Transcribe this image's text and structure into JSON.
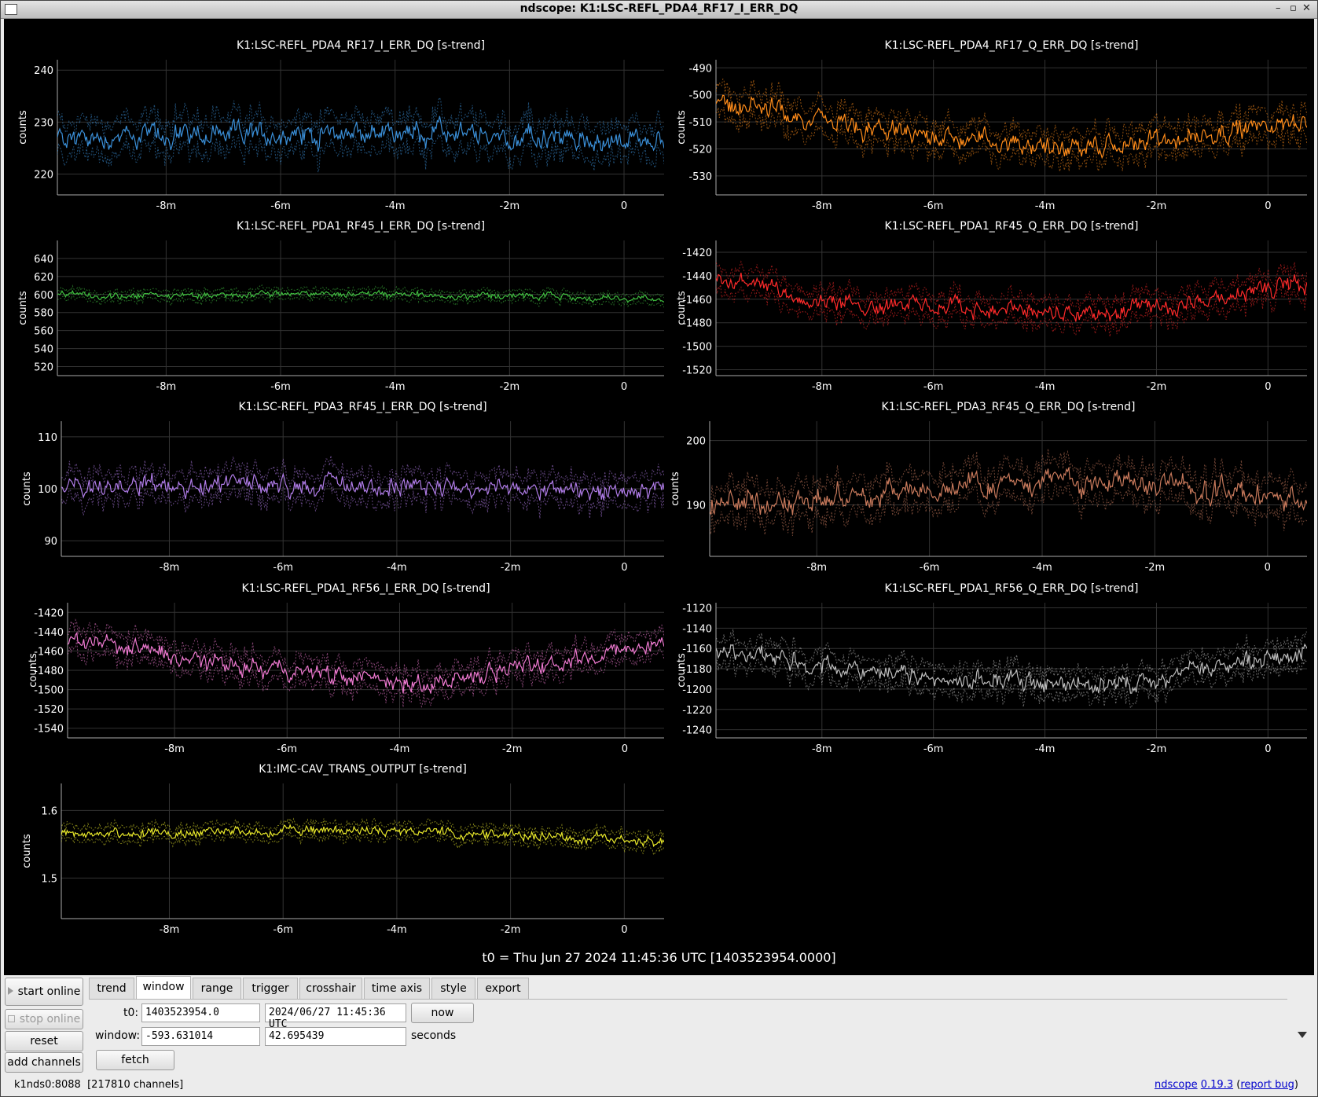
{
  "window": {
    "title": "ndscope: K1:LSC-REFL_PDA4_RF17_I_ERR_DQ"
  },
  "axis_unit": "counts",
  "t0_text": "t0 = Thu Jun 27 2024 11:45:36 UTC [1403523954.0000]",
  "chart_data": [
    {
      "type": "line",
      "title": "K1:LSC-REFL_PDA4_RF17_I_ERR_DQ [s-trend]",
      "ylabel": "counts",
      "xlim": [
        -9.9,
        0.7
      ],
      "ylim": [
        216,
        242
      ],
      "yticks": [
        220,
        230,
        240
      ],
      "xticks": [
        "-8m",
        "-6m",
        "-4m",
        "-2m",
        "0"
      ],
      "color": "#3a8fd8",
      "mean": 227,
      "drift": [
        [
          0,
          0
        ],
        [
          0.5,
          1
        ],
        [
          1,
          -1
        ]
      ],
      "spread": 3
    },
    {
      "type": "line",
      "title": "K1:LSC-REFL_PDA4_RF17_Q_ERR_DQ [s-trend]",
      "ylabel": "counts",
      "xlim": [
        -9.9,
        0.7
      ],
      "ylim": [
        -537,
        -487
      ],
      "yticks": [
        -490,
        -500,
        -510,
        -520,
        -530
      ],
      "xticks": [
        "-8m",
        "-6m",
        "-4m",
        "-2m",
        "0"
      ],
      "color": "#ff8c1a",
      "mean": -511,
      "drift": [
        [
          0,
          9
        ],
        [
          0.25,
          -2
        ],
        [
          0.65,
          -9
        ],
        [
          1,
          2
        ]
      ],
      "spread": 5
    },
    {
      "type": "line",
      "title": "K1:LSC-REFL_PDA1_RF45_I_ERR_DQ [s-trend]",
      "ylabel": "counts",
      "xlim": [
        -9.9,
        0.7
      ],
      "ylim": [
        510,
        660
      ],
      "yticks": [
        640,
        620,
        600,
        580,
        560,
        540,
        520
      ],
      "xticks": [
        "-8m",
        "-6m",
        "-4m",
        "-2m",
        "0"
      ],
      "color": "#3fbf3f",
      "mean": 598,
      "drift": [
        [
          0,
          0
        ],
        [
          0.5,
          3
        ],
        [
          1,
          -3
        ]
      ],
      "spread": 5
    },
    {
      "type": "line",
      "title": "K1:LSC-REFL_PDA1_RF45_Q_ERR_DQ [s-trend]",
      "ylabel": "counts",
      "xlim": [
        -9.9,
        0.7
      ],
      "ylim": [
        -1525,
        -1410
      ],
      "yticks": [
        -1420,
        -1440,
        -1460,
        -1480,
        -1500,
        -1520
      ],
      "xticks": [
        "-8m",
        "-6m",
        "-4m",
        "-2m",
        "0"
      ],
      "color": "#ff2a2a",
      "mean": -1462,
      "drift": [
        [
          0,
          20
        ],
        [
          0.2,
          0
        ],
        [
          0.65,
          -12
        ],
        [
          1,
          15
        ]
      ],
      "spread": 10
    },
    {
      "type": "line",
      "title": "K1:LSC-REFL_PDA3_RF45_I_ERR_DQ [s-trend]",
      "ylabel": "counts",
      "xlim": [
        -9.9,
        0.7
      ],
      "ylim": [
        87,
        113
      ],
      "yticks": [
        110,
        100,
        90
      ],
      "xticks": [
        "-8m",
        "-6m",
        "-4m",
        "-2m",
        "0"
      ],
      "color": "#b07ce8",
      "mean": 101,
      "drift": [
        [
          0,
          0
        ],
        [
          1,
          -1
        ]
      ],
      "spread": 2.5
    },
    {
      "type": "line",
      "title": "K1:LSC-REFL_PDA3_RF45_Q_ERR_DQ [s-trend]",
      "ylabel": "counts",
      "xlim": [
        -9.9,
        0.7
      ],
      "ylim": [
        182,
        203
      ],
      "yticks": [
        200,
        190
      ],
      "xticks": [
        "-8m",
        "-6m",
        "-4m",
        "-2m",
        "0"
      ],
      "color": "#c97a5c",
      "mean": 193,
      "drift": [
        [
          0,
          -3
        ],
        [
          0.6,
          1
        ],
        [
          1,
          -2
        ]
      ],
      "spread": 2.5
    },
    {
      "type": "line",
      "title": "K1:LSC-REFL_PDA1_RF56_I_ERR_DQ [s-trend]",
      "ylabel": "counts",
      "xlim": [
        -9.9,
        0.7
      ],
      "ylim": [
        -1550,
        -1410
      ],
      "yticks": [
        -1420,
        -1440,
        -1460,
        -1480,
        -1500,
        -1520,
        -1540
      ],
      "xticks": [
        "-8m",
        "-6m",
        "-4m",
        "-2m",
        "0"
      ],
      "color": "#f07ad2",
      "mean": -1473,
      "drift": [
        [
          0,
          25
        ],
        [
          0.25,
          0
        ],
        [
          0.6,
          -20
        ],
        [
          1,
          20
        ]
      ],
      "spread": 12
    },
    {
      "type": "line",
      "title": "K1:LSC-REFL_PDA1_RF56_Q_ERR_DQ [s-trend]",
      "ylabel": "counts",
      "xlim": [
        -9.9,
        0.7
      ],
      "ylim": [
        -1248,
        -1115
      ],
      "yticks": [
        -1120,
        -1140,
        -1160,
        -1180,
        -1200,
        -1220,
        -1240
      ],
      "xticks": [
        "-8m",
        "-6m",
        "-4m",
        "-2m",
        "0"
      ],
      "color": "#bdbdbd",
      "mean": -1183,
      "drift": [
        [
          0,
          22
        ],
        [
          0.25,
          0
        ],
        [
          0.65,
          -15
        ],
        [
          1,
          20
        ]
      ],
      "spread": 12
    },
    {
      "type": "line",
      "title": "K1:IMC-CAV_TRANS_OUTPUT [s-trend]",
      "ylabel": "counts",
      "xlim": [
        -9.9,
        0.7
      ],
      "ylim": [
        1.44,
        1.64
      ],
      "yticks": [
        1.6,
        1.5
      ],
      "xticks": [
        "-8m",
        "-6m",
        "-4m",
        "-2m",
        "0"
      ],
      "color": "#e8e82a",
      "mean": 1.565,
      "drift": [
        [
          0,
          0
        ],
        [
          0.5,
          0.006
        ],
        [
          1,
          -0.01
        ]
      ],
      "spread": 0.01
    }
  ],
  "controls": {
    "start_online": "start online",
    "stop_online": "stop online",
    "reset": "reset",
    "add_channels": "add channels",
    "tabs": [
      "trend",
      "window",
      "range",
      "trigger",
      "crosshair",
      "time axis",
      "style",
      "export"
    ],
    "t0_label": "t0:",
    "t0_gps": "1403523954.0",
    "t0_utc": "2024/06/27 11:45:36 UTC",
    "now": "now",
    "window_label": "window:",
    "window_start": "-593.631014",
    "window_end": "42.695439",
    "seconds": "seconds",
    "fetch": "fetch"
  },
  "status": {
    "server": "k1nds0:8088",
    "channels": "[217810 channels]",
    "app_link": "ndscope",
    "version": "0.19.3",
    "report": "report bug"
  }
}
